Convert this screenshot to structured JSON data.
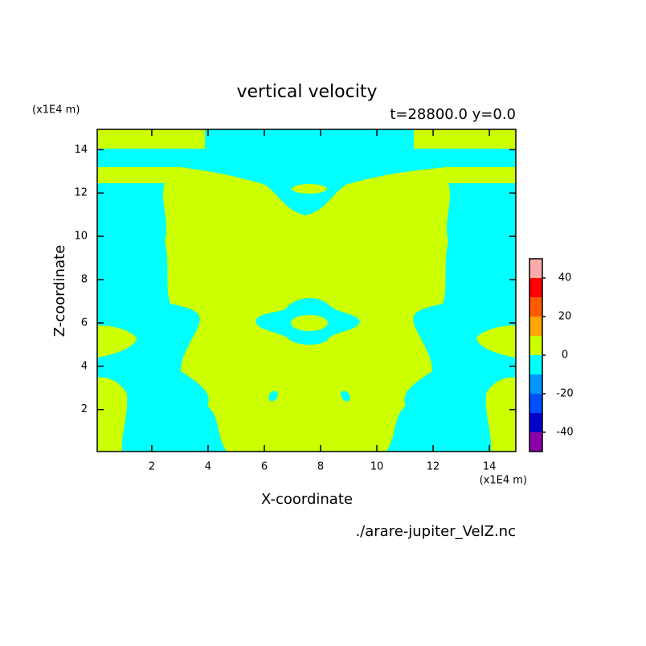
{
  "chart_data": {
    "type": "contour",
    "title": "vertical velocity",
    "subtitle": "t=28800.0 y=0.0",
    "x_label": "X-coordinate",
    "y_label": "Z-coordinate",
    "x_unit": "(x1E4 m)",
    "y_unit": "(x1E4 m)",
    "source": "./arare-jupiter_VelZ.nc",
    "xlim": [
      0.06,
      14.94
    ],
    "ylim": [
      0.06,
      14.94
    ],
    "xticks": [
      2,
      4,
      6,
      8,
      10,
      12,
      14
    ],
    "yticks": [
      2,
      4,
      6,
      8,
      10,
      12,
      14
    ],
    "colorbar": {
      "levels": [
        -50,
        -40,
        -30,
        -20,
        -10,
        0,
        10,
        20,
        30,
        40,
        50
      ],
      "colors": [
        "#8c00aa",
        "#0000c8",
        "#0050ff",
        "#0096ff",
        "#00ffff",
        "#ccff00",
        "#ffa500",
        "#ff5a00",
        "#ff0000",
        "#ffaaaa"
      ],
      "ticks": [
        -40,
        -20,
        0,
        20,
        40
      ]
    }
  }
}
